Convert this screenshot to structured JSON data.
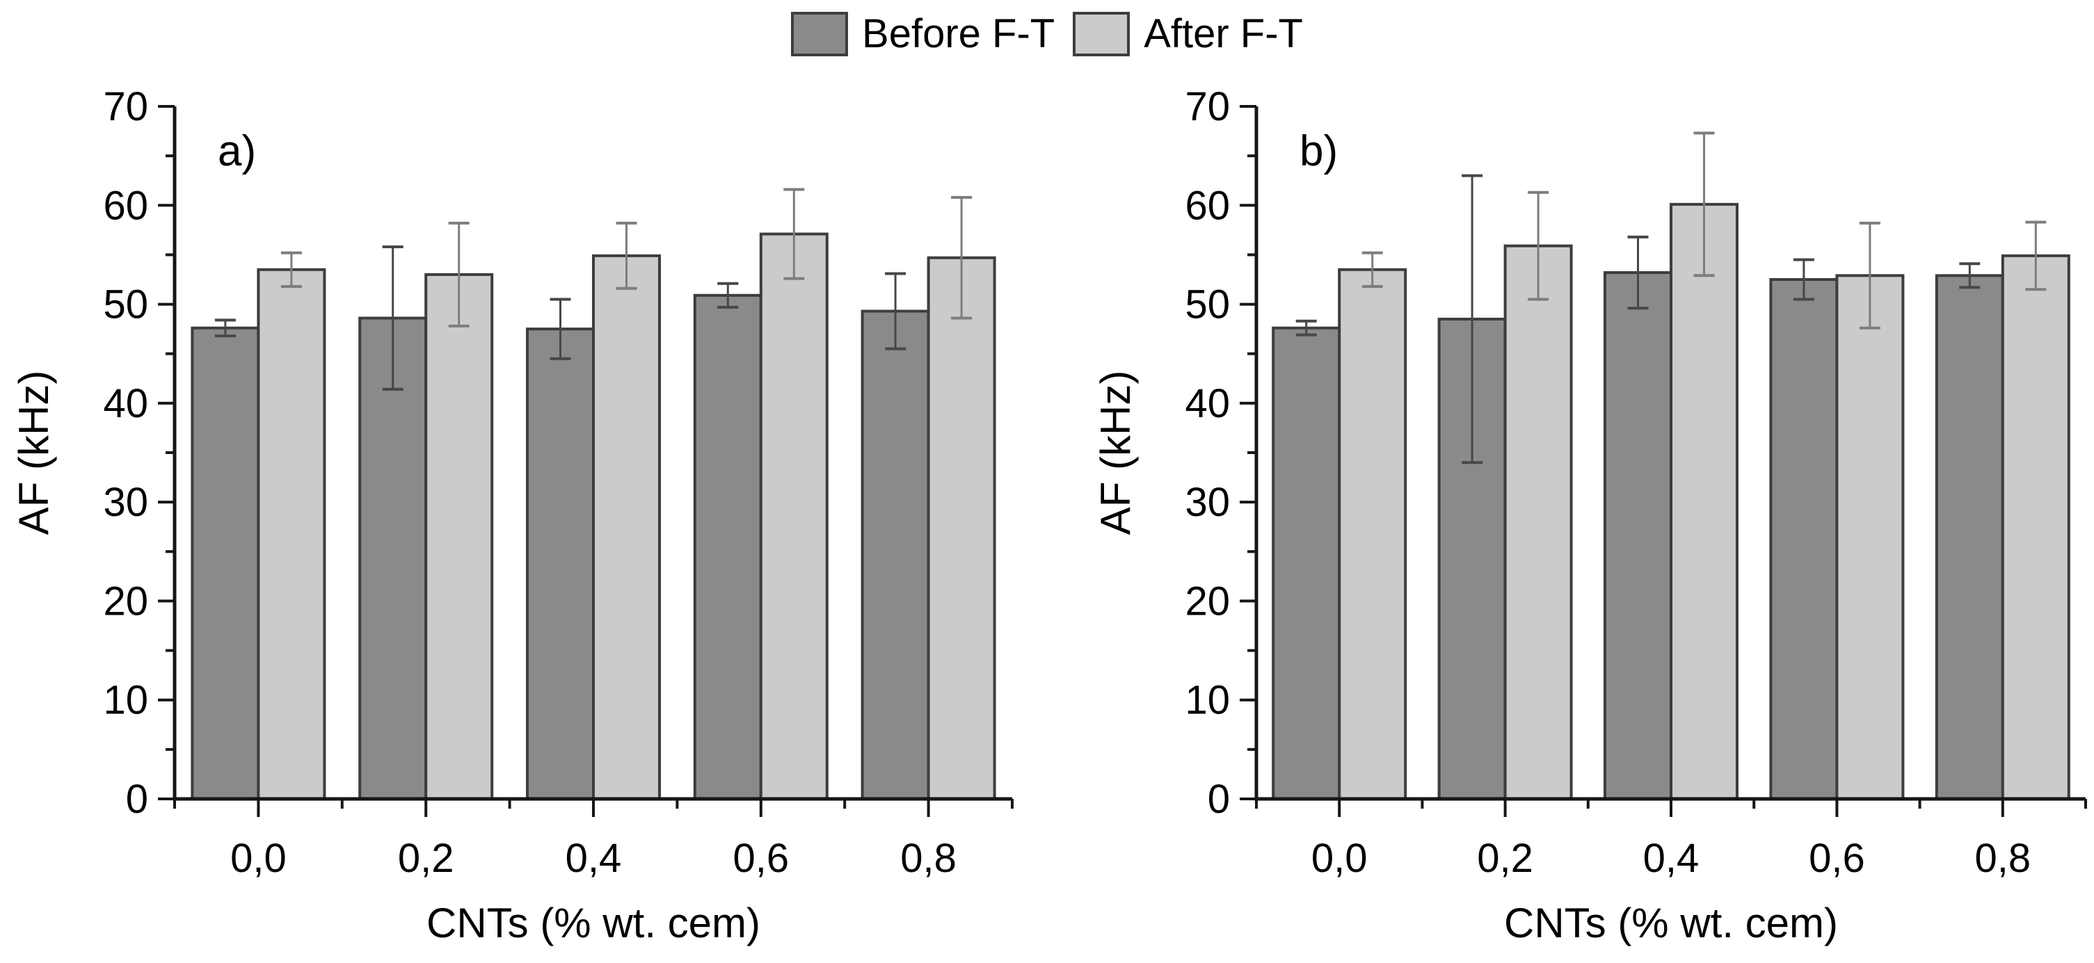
{
  "figure": {
    "background": "#ffffff",
    "text_color": "#000000",
    "axis_color": "#161616",
    "bar_border_color": "#3d3d3d"
  },
  "legend": {
    "position": "top-center",
    "items": [
      {
        "label": "Before F-T",
        "color": "#8a8a8a",
        "error_color": "#474747"
      },
      {
        "label": "After F-T",
        "color": "#cbcbcb",
        "error_color": "#7d7d7d"
      }
    ]
  },
  "chart_data": [
    {
      "type": "bar",
      "panel_label": "a)",
      "title": "",
      "xlabel": "CNTs (% wt. cem)",
      "ylabel": "AF (kHz)",
      "ylim": [
        0,
        70
      ],
      "yticks": [
        0,
        10,
        20,
        30,
        40,
        50,
        60,
        70
      ],
      "yminor_interval": 5,
      "grid": false,
      "error_bars": true,
      "categories": [
        "0,0",
        "0,2",
        "0,4",
        "0,6",
        "0,8"
      ],
      "series": [
        {
          "name": "Before F-T",
          "color": "#8a8a8a",
          "error_color": "#474747",
          "values": [
            47.6,
            48.6,
            47.5,
            50.9,
            49.3
          ],
          "errors": [
            0.8,
            7.2,
            3.0,
            1.2,
            3.8
          ]
        },
        {
          "name": "After F-T",
          "color": "#cbcbcb",
          "error_color": "#7d7d7d",
          "values": [
            53.5,
            53.0,
            54.9,
            57.1,
            54.7
          ],
          "errors": [
            1.7,
            5.2,
            3.3,
            4.5,
            6.1
          ]
        }
      ]
    },
    {
      "type": "bar",
      "panel_label": "b)",
      "title": "",
      "xlabel": "CNTs (% wt. cem)",
      "ylabel": "AF (kHz)",
      "ylim": [
        0,
        70
      ],
      "yticks": [
        0,
        10,
        20,
        30,
        40,
        50,
        60,
        70
      ],
      "yminor_interval": 5,
      "grid": false,
      "error_bars": true,
      "categories": [
        "0,0",
        "0,2",
        "0,4",
        "0,6",
        "0,8"
      ],
      "series": [
        {
          "name": "Before F-T",
          "color": "#8a8a8a",
          "error_color": "#474747",
          "values": [
            47.6,
            48.5,
            53.2,
            52.5,
            52.9
          ],
          "errors": [
            0.7,
            14.5,
            3.6,
            2.0,
            1.2
          ]
        },
        {
          "name": "After F-T",
          "color": "#cbcbcb",
          "error_color": "#7d7d7d",
          "values": [
            53.5,
            55.9,
            60.1,
            52.9,
            54.9
          ],
          "errors": [
            1.7,
            5.4,
            7.2,
            5.3,
            3.4
          ]
        }
      ]
    }
  ]
}
